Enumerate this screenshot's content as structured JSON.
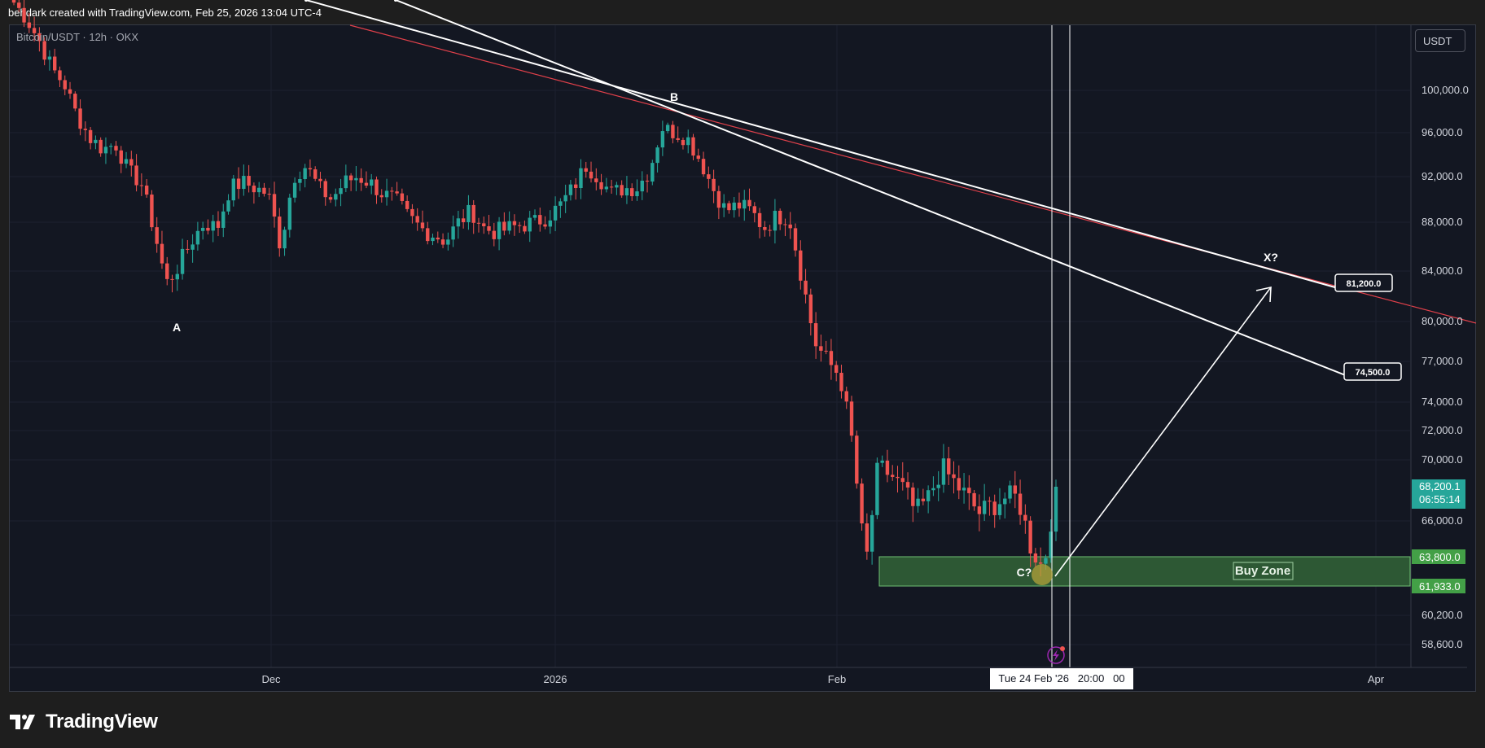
{
  "header": {
    "credit": "behdark created with TradingView.com, Feb 25, 2026 13:04 UTC-4"
  },
  "legend": {
    "symbol": "Bitcoin/USDT · 12h · OKX"
  },
  "currency_button": "USDT",
  "footer": {
    "brand": "TradingView"
  },
  "colors": {
    "background": "#131722",
    "up": "#26a69a",
    "down": "#ef5350",
    "trendline": "#e0404a",
    "zone": "#2e5c36",
    "zone_border": "#6fbf73"
  },
  "chart_data": {
    "type": "candlestick",
    "title": "",
    "symbol": "Bitcoin/USDT",
    "interval": "12h",
    "exchange": "OKX",
    "ylim": [
      57000,
      104000
    ],
    "y_ticks": [
      {
        "value": 100000,
        "label": "100,000.0"
      },
      {
        "value": 96000,
        "label": "96,000.0"
      },
      {
        "value": 92000,
        "label": "92,000.0"
      },
      {
        "value": 88000,
        "label": "88,000.0"
      },
      {
        "value": 84000,
        "label": "84,000.0"
      },
      {
        "value": 80000,
        "label": "80,000.0"
      },
      {
        "value": 77000,
        "label": "77,000.0"
      },
      {
        "value": 74000,
        "label": "74,000.0"
      },
      {
        "value": 72000,
        "label": "72,000.0"
      },
      {
        "value": 70000,
        "label": "70,000.0"
      },
      {
        "value": 66000,
        "label": "66,000.0"
      },
      {
        "value": 60200,
        "label": "60,200.0"
      },
      {
        "value": 58600,
        "label": "58,600.0"
      }
    ],
    "x_ticks": [
      "Dec",
      "2026",
      "Feb",
      "Apr"
    ],
    "last_price": {
      "label": "68,200.1",
      "countdown": "06:55:14",
      "value": 68200.1
    },
    "zone_labels": [
      {
        "value": 63800,
        "label": "63,800.0"
      },
      {
        "value": 61933,
        "label": "61,933.0"
      }
    ],
    "buy_zone": {
      "low": 61933,
      "high": 63800,
      "label": "Buy Zone"
    },
    "wave_labels": [
      {
        "label": "A",
        "price": 80200
      },
      {
        "label": "B",
        "price": 98400
      },
      {
        "label": "C?",
        "price": 63100
      },
      {
        "label": "X?",
        "price": 84600
      }
    ],
    "targets": [
      {
        "label": "81,200.0",
        "value": 81200
      },
      {
        "label": "74,500.0",
        "value": 74500
      }
    ],
    "crosshair_date": "Tue 24 Feb '26   20:00   00",
    "trend": [
      {
        "price": 108000,
        "low": 98800,
        "high": 109500
      },
      {
        "price": 106500
      },
      {
        "price": 104500
      },
      {
        "price": 102000
      },
      {
        "price": 100500
      },
      {
        "price": 97500
      },
      {
        "price": 95500
      },
      {
        "price": 94500
      },
      {
        "price": 95000
      },
      {
        "price": 92500
      },
      {
        "price": 91500
      },
      {
        "price": 87500
      },
      {
        "price": 83000
      },
      {
        "price": 84500
      },
      {
        "price": 86500
      },
      {
        "price": 88000
      },
      {
        "price": 87500
      },
      {
        "price": 91000
      },
      {
        "price": 91500
      },
      {
        "price": 91000
      },
      {
        "price": 90500
      },
      {
        "price": 86000
      },
      {
        "price": 92000
      },
      {
        "price": 93000
      },
      {
        "price": 91000
      },
      {
        "price": 90000
      },
      {
        "price": 91500
      },
      {
        "price": 92000
      },
      {
        "price": 91500
      },
      {
        "price": 90500
      },
      {
        "price": 90000
      },
      {
        "price": 88500
      },
      {
        "price": 87500
      },
      {
        "price": 87000
      },
      {
        "price": 86500
      },
      {
        "price": 88000
      },
      {
        "price": 89000
      },
      {
        "price": 87500
      },
      {
        "price": 87200
      },
      {
        "price": 87500
      },
      {
        "price": 87800
      },
      {
        "price": 88000
      },
      {
        "price": 88500
      },
      {
        "price": 89500
      },
      {
        "price": 91000
      },
      {
        "price": 93000
      },
      {
        "price": 92000
      },
      {
        "price": 90500
      },
      {
        "price": 91000
      },
      {
        "price": 91000
      },
      {
        "price": 92500
      },
      {
        "price": 96500
      },
      {
        "price": 96000
      },
      {
        "price": 95500
      },
      {
        "price": 93500
      },
      {
        "price": 91000
      },
      {
        "price": 89000
      },
      {
        "price": 89500
      },
      {
        "price": 89000
      },
      {
        "price": 87500
      },
      {
        "price": 88500
      },
      {
        "price": 88500
      },
      {
        "price": 83500
      },
      {
        "price": 78500
      },
      {
        "price": 77000
      },
      {
        "price": 76000
      },
      {
        "price": 71000
      },
      {
        "price": 63000
      },
      {
        "price": 69500
      },
      {
        "price": 69000
      },
      {
        "price": 68000
      },
      {
        "price": 66500
      },
      {
        "price": 67500
      },
      {
        "price": 69500
      },
      {
        "price": 68500
      },
      {
        "price": 67500
      },
      {
        "price": 66500
      },
      {
        "price": 67000
      },
      {
        "price": 67500
      },
      {
        "price": 67500
      },
      {
        "price": 64500
      },
      {
        "price": 63000
      },
      {
        "price": 68200
      }
    ]
  }
}
